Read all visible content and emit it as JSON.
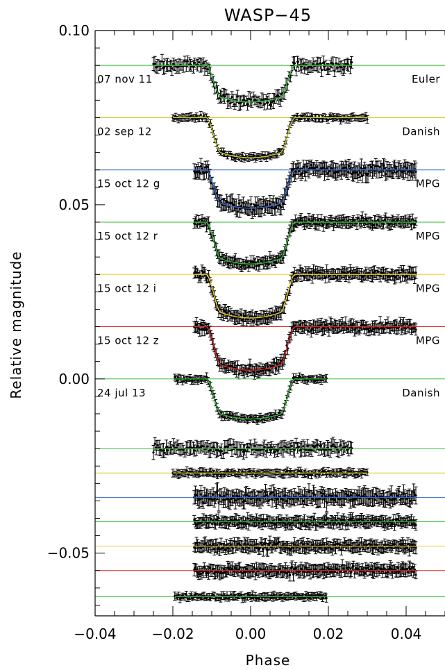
{
  "chart_data": {
    "type": "scatter",
    "title": "WASP−45",
    "xlabel": "Phase",
    "ylabel": "Relative magnitude",
    "xlim": [
      -0.04,
      0.05
    ],
    "ylim": [
      -0.068,
      0.1
    ],
    "x_ticks": [
      {
        "value": -0.04,
        "label": "−0.04"
      },
      {
        "value": -0.02,
        "label": "−0.02"
      },
      {
        "value": 0.0,
        "label": "0.00"
      },
      {
        "value": 0.02,
        "label": "0.02"
      },
      {
        "value": 0.04,
        "label": "0.04"
      }
    ],
    "y_ticks": [
      {
        "value": 0.1,
        "label": "0.10"
      },
      {
        "value": 0.05,
        "label": "0.05"
      },
      {
        "value": 0.0,
        "label": "0.00"
      },
      {
        "value": -0.05,
        "label": "−0.05"
      }
    ],
    "series": [
      {
        "name": "07 nov 11",
        "instrument": "Euler",
        "color": "#33bb33",
        "offset": 0.09,
        "depth": 0.0105,
        "x_range": [
          -0.025,
          0.026
        ],
        "residual_offset": -0.02,
        "noise": 0.0011,
        "n": 140
      },
      {
        "name": "02 sep 12",
        "instrument": "Danish",
        "color": "#cccc22",
        "offset": 0.075,
        "depth": 0.0115,
        "x_range": [
          -0.02,
          0.03
        ],
        "residual_offset": -0.027,
        "noise": 0.0006,
        "n": 140
      },
      {
        "name": "15 oct 12 g",
        "instrument": "MPG",
        "color": "#3366cc",
        "offset": 0.06,
        "depth": 0.011,
        "x_range": [
          -0.0145,
          0.0425
        ],
        "residual_offset": -0.034,
        "noise": 0.0013,
        "n": 200
      },
      {
        "name": "15 oct 12 r",
        "instrument": "MPG",
        "color": "#33bb33",
        "offset": 0.045,
        "depth": 0.012,
        "x_range": [
          -0.0145,
          0.0425
        ],
        "residual_offset": -0.041,
        "noise": 0.0009,
        "n": 200
      },
      {
        "name": "15 oct 12 i",
        "instrument": "MPG",
        "color": "#eecc22",
        "offset": 0.03,
        "depth": 0.0125,
        "x_range": [
          -0.0145,
          0.0425
        ],
        "residual_offset": -0.048,
        "noise": 0.001,
        "n": 200
      },
      {
        "name": "15 oct 12 z",
        "instrument": "MPG",
        "color": "#dd2222",
        "offset": 0.015,
        "depth": 0.0125,
        "x_range": [
          -0.0145,
          0.0425
        ],
        "residual_offset": -0.055,
        "noise": 0.001,
        "n": 200
      },
      {
        "name": "24 jul 13",
        "instrument": "Danish",
        "color": "#33bb33",
        "offset": 0.0,
        "depth": 0.0115,
        "x_range": [
          -0.0195,
          0.0195
        ],
        "residual_offset": -0.0625,
        "noise": 0.0006,
        "n": 120
      }
    ],
    "transit_model": {
      "ingress_x": -0.0115,
      "egress_x": 0.0115,
      "full_depth_x": 0.0075
    },
    "grid": false,
    "legend": "none"
  }
}
